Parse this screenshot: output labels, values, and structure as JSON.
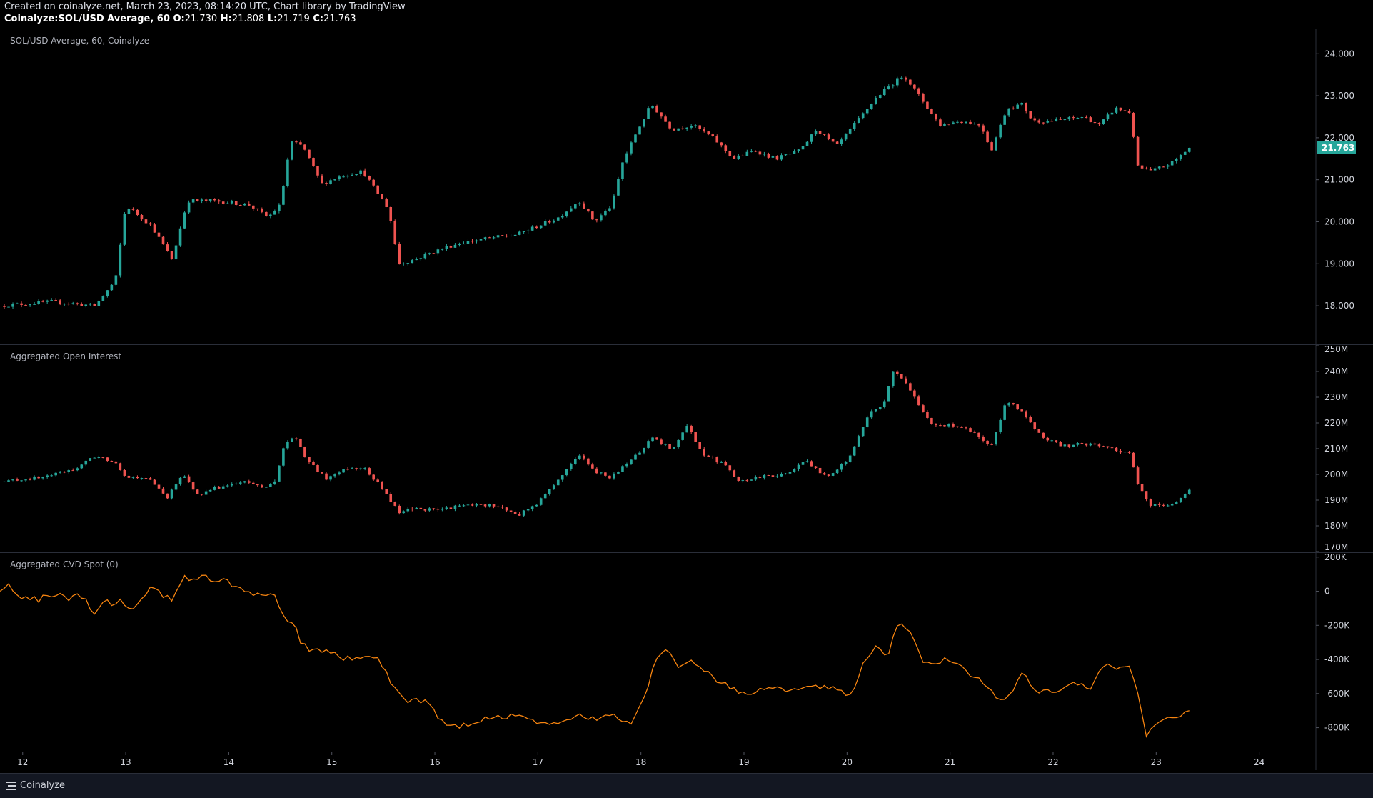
{
  "header": {
    "line1": "Created on coinalyze.net, March 23, 2023, 08:14:20 UTC, Chart library by TradingView",
    "symbol": "Coinalyze:SOL/USD Average, 60",
    "o_label": "O:",
    "o_value": "21.730",
    "h_label": "H:",
    "h_value": "21.808",
    "l_label": "L:",
    "l_value": "21.719",
    "c_label": "C:",
    "c_value": "21.763"
  },
  "footer": {
    "brand": "Coinalyze",
    "brand_icon": "coinalyze-logo-icon"
  },
  "colors": {
    "up": "#26a69a",
    "down": "#ef5350",
    "cvd": "#f68410",
    "axis": "#2a2e39",
    "background": "#000000"
  },
  "chart_data": [
    {
      "type": "candlestick",
      "title": "SOL/USD Average, 60, Coinalyze",
      "ylim": [
        17.1,
        24.6
      ],
      "y_ticks": [
        "24.000",
        "23.000",
        "22.000",
        "21.000",
        "20.000",
        "19.000",
        "18.000"
      ],
      "last_price": "21.763",
      "x_ticks": [
        "12",
        "13",
        "14",
        "15",
        "16",
        "17",
        "18",
        "19",
        "20",
        "21",
        "22",
        "23",
        "24"
      ],
      "xlim": [
        11.78,
        24.55
      ],
      "close_path": [
        [
          11.78,
          18.0
        ],
        [
          12.3,
          18.1
        ],
        [
          12.7,
          18.0
        ],
        [
          12.9,
          18.6
        ],
        [
          13.0,
          20.4
        ],
        [
          13.25,
          19.9
        ],
        [
          13.45,
          19.1
        ],
        [
          13.6,
          20.5
        ],
        [
          13.85,
          20.5
        ],
        [
          14.2,
          20.4
        ],
        [
          14.38,
          20.1
        ],
        [
          14.5,
          20.4
        ],
        [
          14.6,
          21.9
        ],
        [
          14.72,
          21.8
        ],
        [
          14.9,
          20.9
        ],
        [
          15.1,
          21.1
        ],
        [
          15.3,
          21.2
        ],
        [
          15.55,
          20.3
        ],
        [
          15.65,
          19.0
        ],
        [
          15.8,
          19.1
        ],
        [
          16.0,
          19.3
        ],
        [
          16.25,
          19.5
        ],
        [
          16.5,
          19.6
        ],
        [
          16.8,
          19.7
        ],
        [
          17.0,
          19.9
        ],
        [
          17.2,
          20.1
        ],
        [
          17.4,
          20.5
        ],
        [
          17.55,
          20.0
        ],
        [
          17.72,
          20.4
        ],
        [
          17.82,
          21.4
        ],
        [
          17.95,
          22.1
        ],
        [
          18.1,
          22.8
        ],
        [
          18.3,
          22.2
        ],
        [
          18.5,
          22.3
        ],
        [
          18.7,
          22.0
        ],
        [
          18.9,
          21.5
        ],
        [
          19.1,
          21.7
        ],
        [
          19.3,
          21.5
        ],
        [
          19.55,
          21.7
        ],
        [
          19.7,
          22.2
        ],
        [
          19.9,
          21.8
        ],
        [
          20.1,
          22.4
        ],
        [
          20.3,
          23.0
        ],
        [
          20.45,
          23.3
        ],
        [
          20.55,
          23.5
        ],
        [
          20.7,
          23.0
        ],
        [
          20.9,
          22.3
        ],
        [
          21.1,
          22.4
        ],
        [
          21.3,
          22.3
        ],
        [
          21.4,
          21.7
        ],
        [
          21.55,
          22.7
        ],
        [
          21.7,
          22.8
        ],
        [
          21.8,
          22.4
        ],
        [
          22.0,
          22.4
        ],
        [
          22.3,
          22.5
        ],
        [
          22.45,
          22.3
        ],
        [
          22.6,
          22.7
        ],
        [
          22.75,
          22.6
        ],
        [
          22.82,
          21.3
        ],
        [
          22.95,
          21.2
        ],
        [
          23.15,
          21.4
        ],
        [
          23.32,
          21.76
        ]
      ]
    },
    {
      "type": "candlestick",
      "title": "Aggregated Open Interest",
      "ylim": [
        170,
        250
      ],
      "y_ticks": [
        "250M",
        "240M",
        "230M",
        "220M",
        "210M",
        "200M",
        "190M",
        "180M",
        "170M"
      ],
      "x_ticks": [
        "12",
        "13",
        "14",
        "15",
        "16",
        "17",
        "18",
        "19",
        "20",
        "21",
        "22",
        "23",
        "24"
      ],
      "xlim": [
        11.78,
        24.55
      ],
      "close_path": [
        [
          11.78,
          197
        ],
        [
          12.2,
          199
        ],
        [
          12.5,
          202
        ],
        [
          12.7,
          207
        ],
        [
          12.9,
          205
        ],
        [
          13.0,
          199
        ],
        [
          13.2,
          199
        ],
        [
          13.4,
          191
        ],
        [
          13.55,
          200
        ],
        [
          13.7,
          192
        ],
        [
          13.9,
          195
        ],
        [
          14.15,
          197
        ],
        [
          14.35,
          195
        ],
        [
          14.45,
          197
        ],
        [
          14.55,
          213
        ],
        [
          14.65,
          214
        ],
        [
          14.75,
          206
        ],
        [
          14.95,
          198
        ],
        [
          15.1,
          202
        ],
        [
          15.3,
          203
        ],
        [
          15.5,
          194
        ],
        [
          15.65,
          185
        ],
        [
          15.8,
          187
        ],
        [
          16.0,
          186
        ],
        [
          16.3,
          188
        ],
        [
          16.6,
          188
        ],
        [
          16.8,
          184
        ],
        [
          17.0,
          189
        ],
        [
          17.2,
          198
        ],
        [
          17.4,
          208
        ],
        [
          17.55,
          201
        ],
        [
          17.7,
          199
        ],
        [
          17.9,
          205
        ],
        [
          18.1,
          214
        ],
        [
          18.3,
          210
        ],
        [
          18.45,
          219
        ],
        [
          18.6,
          208
        ],
        [
          18.8,
          204
        ],
        [
          18.95,
          197
        ],
        [
          19.15,
          199
        ],
        [
          19.4,
          200
        ],
        [
          19.6,
          205
        ],
        [
          19.8,
          199
        ],
        [
          20.0,
          205
        ],
        [
          20.2,
          223
        ],
        [
          20.35,
          227
        ],
        [
          20.45,
          240
        ],
        [
          20.6,
          234
        ],
        [
          20.8,
          220
        ],
        [
          21.0,
          219
        ],
        [
          21.2,
          217
        ],
        [
          21.4,
          211
        ],
        [
          21.55,
          229
        ],
        [
          21.7,
          224
        ],
        [
          21.9,
          214
        ],
        [
          22.1,
          211
        ],
        [
          22.3,
          212
        ],
        [
          22.5,
          211
        ],
        [
          22.75,
          208
        ],
        [
          22.82,
          196
        ],
        [
          22.95,
          188
        ],
        [
          23.15,
          188
        ],
        [
          23.32,
          194
        ]
      ]
    },
    {
      "type": "line",
      "title": "Aggregated CVD Spot (0)",
      "ylim": [
        -940,
        220
      ],
      "y_ticks": [
        "200K",
        "0",
        "-200K",
        "-400K",
        "-600K",
        "-800K"
      ],
      "x_ticks": [
        "12",
        "13",
        "14",
        "15",
        "16",
        "17",
        "18",
        "19",
        "20",
        "21",
        "22",
        "23",
        "24"
      ],
      "xlim": [
        11.78,
        24.55
      ],
      "series": [
        {
          "color": "#f68410",
          "x": [
            11.78,
            11.85,
            11.95,
            12.05,
            12.15,
            12.3,
            12.45,
            12.6,
            12.7,
            12.8,
            12.85,
            12.95,
            13.05,
            13.15,
            13.25,
            13.35,
            13.45,
            13.55,
            13.65,
            13.8,
            13.95,
            14.1,
            14.25,
            14.35,
            14.45,
            14.55,
            14.65,
            14.7,
            14.8,
            14.95,
            15.1,
            15.3,
            15.45,
            15.6,
            15.75,
            15.9,
            16.05,
            16.2,
            16.4,
            16.6,
            16.8,
            17.0,
            17.2,
            17.4,
            17.6,
            17.75,
            17.9,
            18.05,
            18.15,
            18.25,
            18.35,
            18.45,
            18.55,
            18.7,
            18.85,
            19.0,
            19.2,
            19.4,
            19.6,
            19.8,
            19.95,
            20.05,
            20.15,
            20.3,
            20.4,
            20.5,
            20.6,
            20.75,
            20.95,
            21.1,
            21.3,
            21.5,
            21.6,
            21.7,
            21.85,
            22.0,
            22.2,
            22.35,
            22.5,
            22.65,
            22.75,
            22.82,
            22.9,
            23.05,
            23.2,
            23.32
          ],
          "values": [
            0,
            40,
            -30,
            -40,
            -50,
            -20,
            -40,
            -20,
            -150,
            -30,
            -80,
            -60,
            -110,
            -50,
            20,
            -20,
            -40,
            80,
            70,
            80,
            60,
            30,
            -20,
            -40,
            -10,
            -180,
            -200,
            -310,
            -350,
            -340,
            -390,
            -400,
            -380,
            -560,
            -650,
            -640,
            -750,
            -800,
            -760,
            -730,
            -740,
            -760,
            -780,
            -730,
            -750,
            -720,
            -800,
            -590,
            -400,
            -320,
            -440,
            -410,
            -430,
            -510,
            -550,
            -610,
            -560,
            -580,
            -570,
            -560,
            -590,
            -600,
            -430,
            -320,
            -380,
            -160,
            -240,
            -420,
            -400,
            -450,
            -530,
            -650,
            -580,
            -490,
            -580,
            -590,
            -540,
            -570,
            -440,
            -460,
            -440,
            -610,
            -840,
            -740,
            -730,
            -700
          ]
        }
      ]
    }
  ]
}
